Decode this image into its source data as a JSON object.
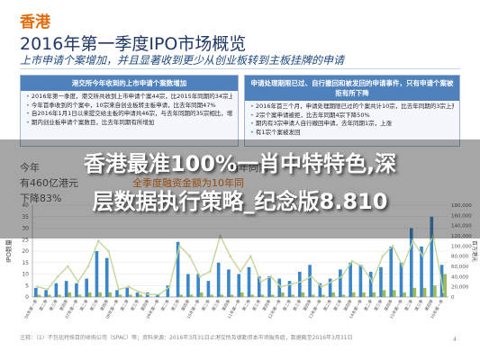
{
  "header": {
    "region": "香港",
    "title": "2016年第一季度IPO市场概览",
    "subtitle": "上市申请个案增加，并且显著收到更少从创业板转到主板挂牌的申请"
  },
  "panels": {
    "left": {
      "heading": "港交所今年收到的上市申请个案数增加",
      "items": [
        "2016年第一季度，港交所共收到上市申请个案44宗，比2015年同期的34宗上升29%",
        "今年首季收到的个案中，10宗来自创业板转主板申请，比去年同期47%",
        "自2016年1月1日以来提交给主板的申请共46宗，与去年同期的35宗相比，增加31%",
        "期内创业板申请个案数目，比去年同期有所增加"
      ]
    },
    "right": {
      "heading": "申请处理期限已过、自行撤回和被发回的申请事件，只有申请个案被拒有所下降",
      "items": [
        "2016年首三个月，申请处理期限已过的个案共计10宗，比去年同期的3宗上升233%",
        "2宗个案申请被拒，比去年同期4宗下降50%",
        "期内有3宗申请人自行撤回申请，去年同期1宗，上涨",
        "有1宗个案被发回"
      ]
    }
  },
  "chart_intro": {
    "line1_a": "今年",
    "line1_b": "两年同期",
    "line2_a": "有460亿港元",
    "line2_b": "全季度融资金额为10年同",
    "line3": "下降83%"
  },
  "banner": {
    "line1": "香港最准100%一肖中特特色,深",
    "line2": "层数据执行策略_纪念版8.810"
  },
  "chart_data": {
    "type": "bar",
    "ylabel": "IPO数量",
    "y2label": "百万港元",
    "ylim": [
      0,
      40
    ],
    "y2lim": [
      0,
      180000
    ],
    "yticks": [
      0,
      5,
      10,
      15,
      20,
      25,
      30,
      35,
      40
    ],
    "y2ticks": [
      "0",
      "20,000",
      "40,000",
      "60,000",
      "80,000",
      "100,000",
      "120,000",
      "140,000",
      "160,000",
      "180,000"
    ],
    "categories": [
      "06年第一季",
      "第二季",
      "第三季",
      "第四季",
      "07年第一季",
      "第二季",
      "第三季",
      "第四季",
      "08年第一季",
      "第二季",
      "第三季",
      "第四季",
      "09年第一季",
      "第二季",
      "第三季",
      "第四季",
      "10年第一季",
      "第二季",
      "第三季",
      "第四季",
      "11年第一季",
      "第二季",
      "第三季",
      "第四季",
      "12年第一季",
      "第二季",
      "第三季",
      "第四季",
      "13年第一季",
      "第二季",
      "第三季",
      "第四季",
      "14年第一季",
      "第二季",
      "第三季",
      "第四季",
      "15年第一季",
      "第二季",
      "第三季",
      "第四季",
      "16年第一季"
    ],
    "series": [
      {
        "name": "主板IPO数量",
        "color": "#3a86c8",
        "values": [
          4,
          3,
          6,
          7,
          6,
          8,
          20,
          17,
          3,
          4,
          2,
          2,
          1,
          5,
          24,
          10,
          10,
          7,
          15,
          12,
          10,
          13,
          9,
          9,
          8,
          7,
          11,
          14,
          6,
          8,
          12,
          15,
          14,
          11,
          13,
          22,
          15,
          30,
          22,
          35,
          14
        ]
      },
      {
        "name": "创业板IPO数量",
        "color": "#9bbb59",
        "values": [
          1,
          1,
          1,
          2,
          1,
          2,
          2,
          2,
          1,
          1,
          1,
          0,
          0,
          0,
          1,
          1,
          2,
          1,
          1,
          1,
          2,
          1,
          1,
          1,
          2,
          1,
          2,
          1,
          1,
          2,
          1,
          2,
          2,
          2,
          3,
          3,
          2,
          4,
          4,
          5,
          10
        ]
      },
      {
        "name": "融资金额（百万港元）",
        "color": "#c3d69b",
        "values": [
          20000,
          15000,
          40000,
          60000,
          30000,
          60000,
          110000,
          90000,
          15000,
          20000,
          10000,
          5000,
          5000,
          20000,
          100000,
          80000,
          40000,
          50000,
          120000,
          80000,
          50000,
          80000,
          30000,
          40000,
          20000,
          25000,
          30000,
          40000,
          20000,
          30000,
          40000,
          70000,
          60000,
          30000,
          80000,
          100000,
          60000,
          110000,
          80000,
          120000,
          10000
        ]
      }
    ]
  },
  "footnote": "注释：（1）不包括特殊目的收购公司（SPAC）等；资料来源：2016年3月31日止港交所及德勤资本市场服务组，数据截至2016年3月31日",
  "page_number": "4"
}
